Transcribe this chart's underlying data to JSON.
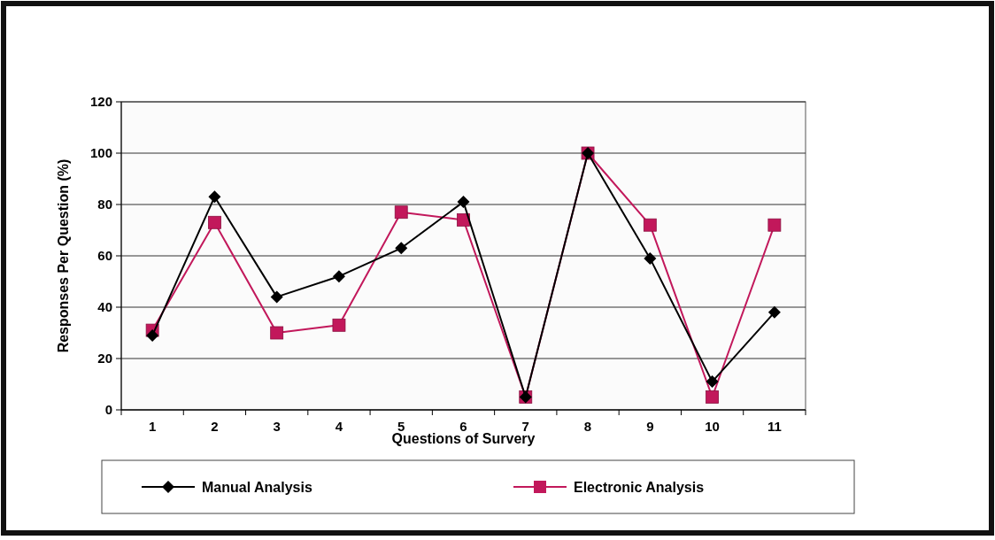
{
  "chart_data": {
    "type": "line",
    "xlabel": "Questions of Survery",
    "ylabel": "Responses Per Question (%)",
    "categories": [
      "1",
      "2",
      "3",
      "4",
      "5",
      "6",
      "7",
      "8",
      "9",
      "10",
      "11"
    ],
    "series": [
      {
        "name": "Manual Analysis",
        "color": "#000000",
        "marker": "diamond",
        "values": [
          29,
          83,
          44,
          52,
          63,
          81,
          5,
          100,
          59,
          11,
          38
        ]
      },
      {
        "name": "Electronic Analysis",
        "color": "#c2185b",
        "marker": "square",
        "values": [
          31,
          73,
          30,
          33,
          77,
          74,
          5,
          100,
          72,
          5,
          72
        ]
      }
    ],
    "ylim": [
      0,
      120
    ],
    "yticks": [
      0,
      20,
      40,
      60,
      80,
      100,
      120
    ],
    "grid": "y",
    "legend": "bottom"
  }
}
